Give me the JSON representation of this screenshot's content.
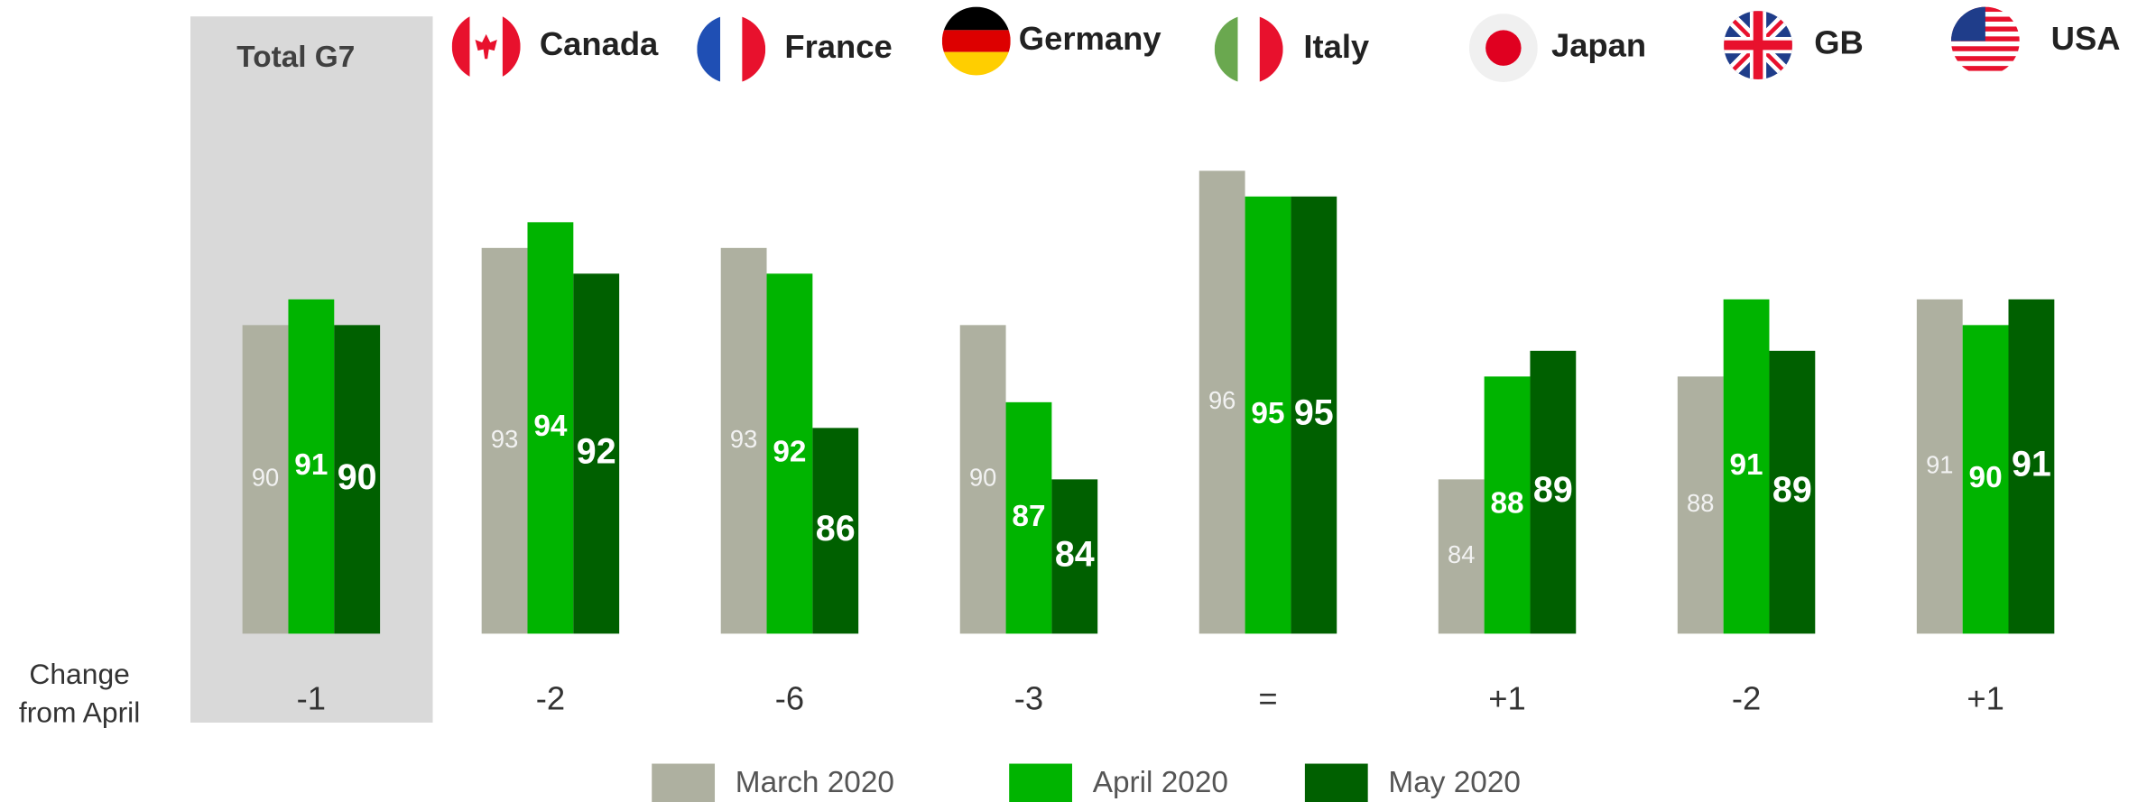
{
  "chart_data": {
    "type": "bar",
    "categories": [
      "Total G7",
      "Canada",
      "France",
      "Germany",
      "Italy",
      "Japan",
      "GB",
      "USA"
    ],
    "series": [
      {
        "name": "March 2020",
        "color": "#aeb0a0",
        "values": [
          90,
          93,
          93,
          90,
          96,
          84,
          88,
          91
        ]
      },
      {
        "name": "April 2020",
        "color": "#00b400",
        "values": [
          91,
          94,
          92,
          87,
          95,
          88,
          91,
          90
        ]
      },
      {
        "name": "May 2020",
        "color": "#006000",
        "values": [
          90,
          92,
          86,
          84,
          95,
          89,
          89,
          91
        ]
      }
    ],
    "ylim": [
      78,
      97
    ],
    "change_label": [
      "Change",
      "from April"
    ],
    "changes": [
      "-1",
      "-2",
      "-6",
      "-3",
      "=",
      "+1",
      "-2",
      "+1"
    ]
  }
}
